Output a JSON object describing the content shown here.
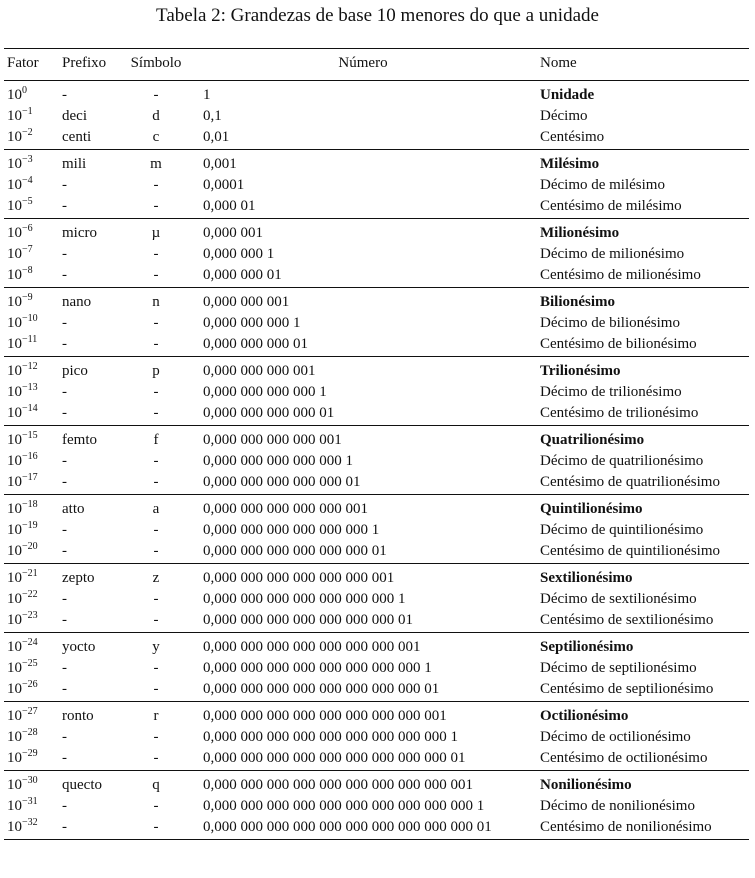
{
  "caption": "Tabela 2: Grandezas de base 10 menores do que a unidade",
  "headers": {
    "fator": "Fator",
    "prefixo": "Prefixo",
    "simbolo": "Símbolo",
    "numero": "Número",
    "nome": "Nome"
  },
  "groups": [
    {
      "rows": [
        {
          "base": "10",
          "exp": "0",
          "prefixo": "-",
          "simbolo": "-",
          "numero": "1",
          "nome": "Unidade"
        },
        {
          "base": "10",
          "exp": "−1",
          "prefixo": "deci",
          "simbolo": "d",
          "numero": "0,1",
          "nome": "Décimo"
        },
        {
          "base": "10",
          "exp": "−2",
          "prefixo": "centi",
          "simbolo": "c",
          "numero": "0,01",
          "nome": "Centésimo"
        }
      ]
    },
    {
      "rows": [
        {
          "base": "10",
          "exp": "−3",
          "prefixo": "mili",
          "simbolo": "m",
          "numero": "0,001",
          "nome": "Milésimo"
        },
        {
          "base": "10",
          "exp": "−4",
          "prefixo": "-",
          "simbolo": "-",
          "numero": "0,0001",
          "nome": "Décimo de milésimo"
        },
        {
          "base": "10",
          "exp": "−5",
          "prefixo": "-",
          "simbolo": "-",
          "numero": "0,000 01",
          "nome": "Centésimo de milésimo"
        }
      ]
    },
    {
      "rows": [
        {
          "base": "10",
          "exp": "−6",
          "prefixo": "micro",
          "simbolo": "µ",
          "numero": "0,000 001",
          "nome": "Milionésimo"
        },
        {
          "base": "10",
          "exp": "−7",
          "prefixo": "-",
          "simbolo": "-",
          "numero": "0,000 000 1",
          "nome": "Décimo de milionésimo"
        },
        {
          "base": "10",
          "exp": "−8",
          "prefixo": "-",
          "simbolo": "-",
          "numero": "0,000 000 01",
          "nome": "Centésimo de milionésimo"
        }
      ]
    },
    {
      "rows": [
        {
          "base": "10",
          "exp": "−9",
          "prefixo": "nano",
          "simbolo": "n",
          "numero": "0,000 000 001",
          "nome": "Bilionésimo"
        },
        {
          "base": "10",
          "exp": "−10",
          "prefixo": "-",
          "simbolo": "-",
          "numero": "0,000 000 000 1",
          "nome": "Décimo de bilionésimo"
        },
        {
          "base": "10",
          "exp": "−11",
          "prefixo": "-",
          "simbolo": "-",
          "numero": "0,000 000 000 01",
          "nome": "Centésimo de bilionésimo"
        }
      ]
    },
    {
      "rows": [
        {
          "base": "10",
          "exp": "−12",
          "prefixo": "pico",
          "simbolo": "p",
          "numero": "0,000 000 000 001",
          "nome": "Trilionésimo"
        },
        {
          "base": "10",
          "exp": "−13",
          "prefixo": "-",
          "simbolo": "-",
          "numero": "0,000 000 000 000 1",
          "nome": "Décimo de trilionésimo"
        },
        {
          "base": "10",
          "exp": "−14",
          "prefixo": "-",
          "simbolo": "-",
          "numero": "0,000 000 000 000 01",
          "nome": "Centésimo de trilionésimo"
        }
      ]
    },
    {
      "rows": [
        {
          "base": "10",
          "exp": "−15",
          "prefixo": "femto",
          "simbolo": "f",
          "numero": "0,000 000 000 000 001",
          "nome": "Quatrilionésimo"
        },
        {
          "base": "10",
          "exp": "−16",
          "prefixo": "-",
          "simbolo": "-",
          "numero": "0,000 000 000 000 000 1",
          "nome": "Décimo de quatrilionésimo"
        },
        {
          "base": "10",
          "exp": "−17",
          "prefixo": "-",
          "simbolo": "-",
          "numero": "0,000 000 000 000 000 01",
          "nome": "Centésimo de quatrilionésimo"
        }
      ]
    },
    {
      "rows": [
        {
          "base": "10",
          "exp": "−18",
          "prefixo": "atto",
          "simbolo": "a",
          "numero": "0,000 000 000 000 000 001",
          "nome": "Quintilionésimo"
        },
        {
          "base": "10",
          "exp": "−19",
          "prefixo": "-",
          "simbolo": "-",
          "numero": "0,000 000 000 000 000 000 1",
          "nome": "Décimo de quintilionésimo"
        },
        {
          "base": "10",
          "exp": "−20",
          "prefixo": "-",
          "simbolo": "-",
          "numero": "0,000 000 000 000 000 000 01",
          "nome": "Centésimo de quintilionésimo"
        }
      ]
    },
    {
      "rows": [
        {
          "base": "10",
          "exp": "−21",
          "prefixo": "zepto",
          "simbolo": "z",
          "numero": "0,000 000 000 000 000 000 001",
          "nome": "Sextilionésimo"
        },
        {
          "base": "10",
          "exp": "−22",
          "prefixo": "-",
          "simbolo": "-",
          "numero": "0,000 000 000 000 000 000 000 1",
          "nome": "Décimo de sextilionésimo"
        },
        {
          "base": "10",
          "exp": "−23",
          "prefixo": "-",
          "simbolo": "-",
          "numero": "0,000 000 000 000 000 000 000 01",
          "nome": "Centésimo de sextilionésimo"
        }
      ]
    },
    {
      "rows": [
        {
          "base": "10",
          "exp": "−24",
          "prefixo": "yocto",
          "simbolo": "y",
          "numero": "0,000 000 000 000 000 000 000 001",
          "nome": "Septilionésimo"
        },
        {
          "base": "10",
          "exp": "−25",
          "prefixo": "-",
          "simbolo": "-",
          "numero": "0,000 000 000 000 000 000 000 000 1",
          "nome": "Décimo de septilionésimo"
        },
        {
          "base": "10",
          "exp": "−26",
          "prefixo": "-",
          "simbolo": "-",
          "numero": "0,000 000 000 000 000 000 000 000 01",
          "nome": "Centésimo de septilionésimo"
        }
      ]
    },
    {
      "rows": [
        {
          "base": "10",
          "exp": "−27",
          "prefixo": "ronto",
          "simbolo": "r",
          "numero": "0,000 000 000 000 000 000 000 000 001",
          "nome": "Octilionésimo"
        },
        {
          "base": "10",
          "exp": "−28",
          "prefixo": "-",
          "simbolo": "-",
          "numero": "0,000 000 000 000 000 000 000 000 000 1",
          "nome": "Décimo de octilionésimo"
        },
        {
          "base": "10",
          "exp": "−29",
          "prefixo": "-",
          "simbolo": "-",
          "numero": "0,000 000 000 000 000 000 000 000 000 01",
          "nome": "Centésimo de octilionésimo"
        }
      ]
    },
    {
      "rows": [
        {
          "base": "10",
          "exp": "−30",
          "prefixo": "quecto",
          "simbolo": "q",
          "numero": "0,000 000 000 000 000 000 000 000 000 001",
          "nome": "Nonilionésimo"
        },
        {
          "base": "10",
          "exp": "−31",
          "prefixo": "-",
          "simbolo": "-",
          "numero": "0,000 000 000 000 000 000 000 000 000 000 1",
          "nome": "Décimo de nonilionésimo"
        },
        {
          "base": "10",
          "exp": "−32",
          "prefixo": "-",
          "simbolo": "-",
          "numero": "0,000 000 000 000 000 000 000 000 000 000 01",
          "nome": "Centésimo de nonilionésimo"
        }
      ]
    }
  ]
}
